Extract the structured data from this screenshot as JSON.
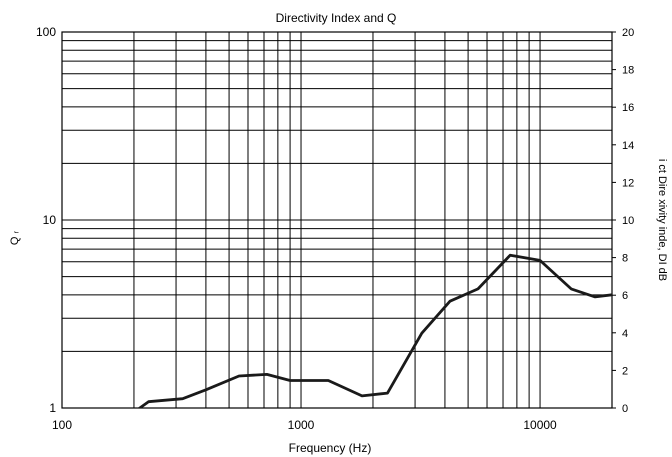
{
  "chart_data": {
    "type": "line",
    "title": "Directivity Index and Q",
    "xlabel": "Frequency (Hz)",
    "ylabel_left": "Q ᵣ",
    "ylabel_right": "i ct Dire xivity inde, DI dB",
    "x_scale": "log",
    "xlim": [
      100,
      20000
    ],
    "ylim_left": [
      1,
      100
    ],
    "y_left_scale": "log",
    "ylim_right": [
      0,
      20
    ],
    "x_tick_labels": [
      "100",
      "1000",
      "10000"
    ],
    "y_left_tick_labels": [
      "1",
      "10",
      "100"
    ],
    "y_right_tick_labels": [
      "0",
      "2",
      "4",
      "6",
      "8",
      "10",
      "12",
      "14",
      "16",
      "18",
      "20"
    ],
    "grid": true,
    "series": [
      {
        "x": [
          200,
          230,
          320,
          400,
          550,
          720,
          900,
          1300,
          1800,
          2300,
          3200,
          4200,
          5500,
          7500,
          10000,
          13500,
          17000,
          20000
        ],
        "q": [
          0.95,
          1.08,
          1.12,
          1.25,
          1.48,
          1.51,
          1.4,
          1.4,
          1.16,
          1.2,
          2.5,
          3.7,
          4.3,
          6.5,
          6.1,
          4.3,
          3.9,
          4.0
        ]
      }
    ]
  }
}
